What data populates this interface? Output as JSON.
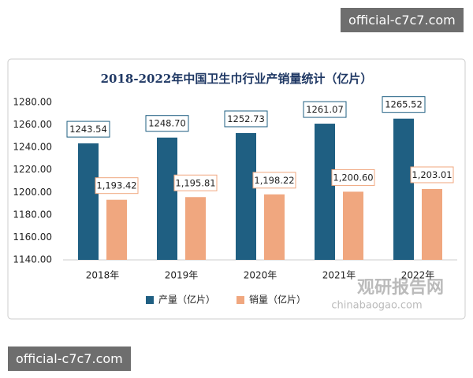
{
  "watermark": "official-c7c7.com",
  "logo": {
    "name": "观研报告网",
    "site": "chinabaogao.com"
  },
  "chart_data": {
    "type": "bar",
    "title": "2018-2022年中国卫生巾行业产销量统计（亿片）",
    "categories": [
      "2018年",
      "2019年",
      "2020年",
      "2021年",
      "2022年"
    ],
    "series": [
      {
        "name": "产量（亿片）",
        "color": "#1f5f82",
        "values": [
          1243.54,
          1248.7,
          1252.73,
          1261.07,
          1265.52
        ],
        "value_labels": [
          "1243.54",
          "1248.70",
          "1252.73",
          "1261.07",
          "1265.52"
        ]
      },
      {
        "name": "销量（亿片）",
        "color": "#f0a77f",
        "values": [
          1193.42,
          1195.81,
          1198.22,
          1200.6,
          1203.01
        ],
        "value_labels": [
          "1,193.42",
          "1,195.81",
          "1,198.22",
          "1,200.60",
          "1,203.01"
        ]
      }
    ],
    "ylim": [
      1140,
      1280
    ],
    "yticks": [
      {
        "value": 1140,
        "label": "1140.00"
      },
      {
        "value": 1160,
        "label": "1160.00"
      },
      {
        "value": 1180,
        "label": "1180.00"
      },
      {
        "value": 1200,
        "label": "1200.00"
      },
      {
        "value": 1220,
        "label": "1220.00"
      },
      {
        "value": 1240,
        "label": "1240.00"
      },
      {
        "value": 1260,
        "label": "1260.00"
      },
      {
        "value": 1280,
        "label": "1280.00"
      }
    ],
    "grid": false,
    "legend": "bottom"
  }
}
